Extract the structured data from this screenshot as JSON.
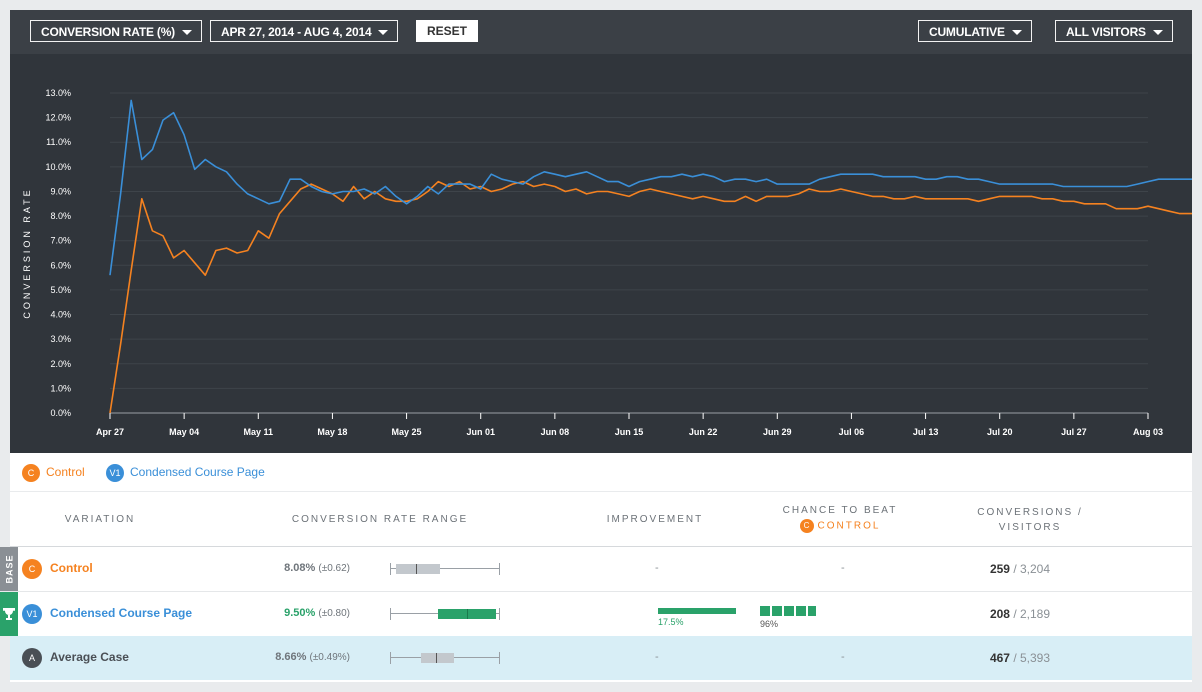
{
  "toolbar": {
    "metric": "CONVERSION RATE (%)",
    "date_range": "APR 27, 2014 - AUG 4, 2014",
    "reset": "RESET",
    "mode": "CUMULATIVE",
    "segment": "ALL VISITORS"
  },
  "legend": {
    "items": [
      {
        "badge": "C",
        "label": "Control",
        "color": "#f58220"
      },
      {
        "badge": "V1",
        "label": "Condensed Course Page",
        "color": "#3a8fd8"
      }
    ]
  },
  "table": {
    "headers": {
      "variation": "VARIATION",
      "range": "CONVERSION RATE RANGE",
      "improvement": "IMPROVEMENT",
      "chance_line1": "CHANCE TO BEAT",
      "chance_badge": "C",
      "chance_line2": "CONTROL",
      "conversions_line1": "CONVERSIONS /",
      "conversions_line2": "VISITORS"
    },
    "rows": [
      {
        "tag": "BASE",
        "badge": "C",
        "name": "Control",
        "rate": "8.08%",
        "pm": "(±0.62)",
        "range_box": [
          0.05,
          0.45
        ],
        "range_median": 0.24,
        "improvement": "-",
        "improvement_value": null,
        "chance": "-",
        "chance_value": null,
        "conversions": "259",
        "visitors": "/ 3,204"
      },
      {
        "tag": "trophy-icon",
        "badge": "V1",
        "name": "Condensed Course Page",
        "rate": "9.50%",
        "pm": "(±0.80)",
        "range_box": [
          0.44,
          0.96
        ],
        "range_median": 0.7,
        "improvement": "17.5%",
        "improvement_value": 17.5,
        "chance": "96%",
        "chance_value": 96,
        "conversions": "208",
        "visitors": "/ 2,189"
      },
      {
        "tag": "",
        "badge": "A",
        "name": "Average Case",
        "rate": "8.66%",
        "pm": "(±0.49%)",
        "range_box": [
          0.28,
          0.58
        ],
        "range_median": 0.42,
        "improvement": "-",
        "improvement_value": null,
        "chance": "-",
        "chance_value": null,
        "conversions": "467",
        "visitors": "/ 5,393"
      }
    ]
  },
  "colors": {
    "control": "#f58220",
    "variation": "#3a8fd8",
    "average": "#4a4f55",
    "win": "#2aa26a",
    "base_tag": "#8a8f95"
  },
  "chart_data": {
    "type": "line",
    "ylabel": "CONVERSION RATE",
    "ylim": [
      0,
      13
    ],
    "yticks": [
      "0.0%",
      "1.0%",
      "2.0%",
      "3.0%",
      "4.0%",
      "5.0%",
      "6.0%",
      "7.0%",
      "8.0%",
      "9.0%",
      "10.0%",
      "11.0%",
      "12.0%",
      "13.0%"
    ],
    "xticks": [
      "Apr 27",
      "May 04",
      "May 11",
      "May 18",
      "May 25",
      "Jun 01",
      "Jun 08",
      "Jun 15",
      "Jun 22",
      "Jun 29",
      "Jul 06",
      "Jul 13",
      "Jul 20",
      "Jul 27",
      "Aug 03"
    ],
    "x_days": 98,
    "series": [
      {
        "name": "Control",
        "color": "#f58220",
        "values": [
          0.0,
          2.8,
          5.8,
          8.7,
          7.4,
          7.2,
          6.3,
          6.6,
          6.1,
          5.6,
          6.6,
          6.7,
          6.5,
          6.6,
          7.4,
          7.1,
          8.1,
          8.6,
          9.1,
          9.3,
          9.1,
          8.9,
          8.6,
          9.2,
          8.7,
          9.0,
          8.7,
          8.6,
          8.6,
          8.7,
          9.0,
          9.4,
          9.2,
          9.4,
          9.1,
          9.2,
          9.0,
          9.1,
          9.3,
          9.4,
          9.2,
          9.3,
          9.2,
          9.0,
          9.1,
          8.9,
          9.0,
          9.0,
          8.9,
          8.8,
          9.0,
          9.1,
          9.0,
          8.9,
          8.8,
          8.7,
          8.8,
          8.7,
          8.6,
          8.6,
          8.8,
          8.6,
          8.8,
          8.8,
          8.8,
          8.9,
          9.1,
          9.0,
          9.0,
          9.1,
          9.0,
          8.9,
          8.8,
          8.8,
          8.7,
          8.7,
          8.8,
          8.7,
          8.7,
          8.7,
          8.7,
          8.7,
          8.6,
          8.7,
          8.8,
          8.8,
          8.8,
          8.8,
          8.7,
          8.7,
          8.6,
          8.6,
          8.5,
          8.5,
          8.5,
          8.3,
          8.3,
          8.3,
          8.4,
          8.3,
          8.2,
          8.1,
          8.1,
          8.1
        ]
      },
      {
        "name": "Condensed Course Page",
        "color": "#3a8fd8",
        "values": [
          5.6,
          8.9,
          12.7,
          10.3,
          10.7,
          11.9,
          12.2,
          11.3,
          9.9,
          10.3,
          10.0,
          9.8,
          9.3,
          8.9,
          8.7,
          8.5,
          8.6,
          9.5,
          9.5,
          9.2,
          9.0,
          8.9,
          9.0,
          9.0,
          9.1,
          8.9,
          9.2,
          8.8,
          8.5,
          8.8,
          9.2,
          8.9,
          9.3,
          9.3,
          9.3,
          9.1,
          9.7,
          9.5,
          9.4,
          9.3,
          9.6,
          9.8,
          9.7,
          9.6,
          9.7,
          9.8,
          9.6,
          9.4,
          9.4,
          9.2,
          9.4,
          9.5,
          9.6,
          9.6,
          9.7,
          9.6,
          9.7,
          9.6,
          9.4,
          9.5,
          9.5,
          9.4,
          9.5,
          9.3,
          9.3,
          9.3,
          9.3,
          9.5,
          9.6,
          9.7,
          9.7,
          9.7,
          9.7,
          9.6,
          9.6,
          9.6,
          9.6,
          9.5,
          9.5,
          9.6,
          9.6,
          9.5,
          9.5,
          9.4,
          9.3,
          9.3,
          9.3,
          9.3,
          9.3,
          9.3,
          9.2,
          9.2,
          9.2,
          9.2,
          9.2,
          9.2,
          9.2,
          9.3,
          9.4,
          9.5,
          9.5,
          9.5,
          9.5,
          9.5
        ]
      }
    ]
  }
}
